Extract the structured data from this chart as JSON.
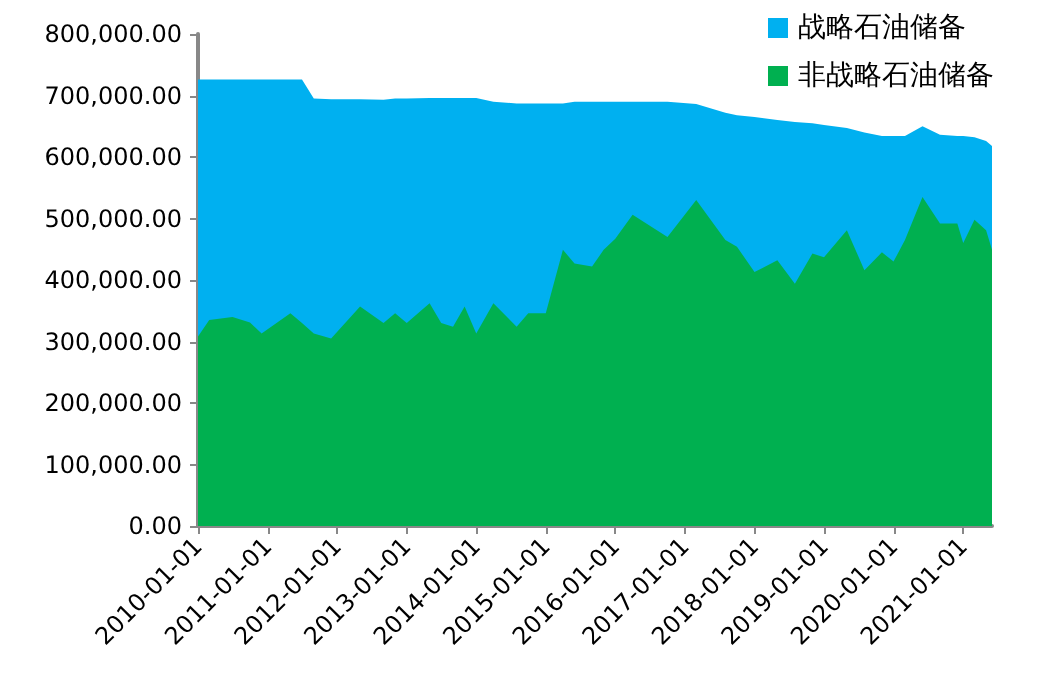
{
  "chart_data": {
    "type": "area",
    "stacked": true,
    "x": [
      "2010-01",
      "2010-03",
      "2010-07",
      "2010-10",
      "2010-12",
      "2011-05",
      "2011-07",
      "2011-09",
      "2011-12",
      "2012-05",
      "2012-09",
      "2012-11",
      "2013-01",
      "2013-05",
      "2013-07",
      "2013-09",
      "2013-11",
      "2014-01",
      "2014-04",
      "2014-08",
      "2014-10",
      "2015-01",
      "2015-04",
      "2015-06",
      "2015-09",
      "2015-11",
      "2016-01",
      "2016-04",
      "2016-10",
      "2017-03",
      "2017-08",
      "2017-10",
      "2018-01",
      "2018-05",
      "2018-08",
      "2018-11",
      "2019-01",
      "2019-05",
      "2019-08",
      "2019-11",
      "2020-01",
      "2020-03",
      "2020-06",
      "2020-09",
      "2020-12",
      "2021-01",
      "2021-03",
      "2021-05",
      "2021-06"
    ],
    "series": [
      {
        "name": "非战略石油储备",
        "color": "#00b050",
        "values": [
          308000,
          335000,
          340000,
          331000,
          313000,
          346000,
          330000,
          313000,
          305000,
          357000,
          330000,
          346000,
          330000,
          362000,
          330000,
          324000,
          357000,
          313000,
          362000,
          324000,
          346000,
          346000,
          449000,
          427000,
          422000,
          449000,
          467000,
          506000,
          470000,
          530000,
          465000,
          454000,
          413000,
          432000,
          394000,
          443000,
          437000,
          481000,
          416000,
          445000,
          430000,
          465000,
          535000,
          492000,
          492000,
          460000,
          498000,
          481000,
          449000
        ]
      },
      {
        "name": "战略石油储备",
        "color": "#00b0f0",
        "values": [
          418000,
          391000,
          386000,
          395000,
          413000,
          380000,
          396000,
          382000,
          389000,
          337000,
          363000,
          349000,
          365000,
          334000,
          366000,
          372000,
          339000,
          383000,
          328000,
          363000,
          341000,
          341000,
          238000,
          263000,
          268000,
          241000,
          223000,
          184000,
          220000,
          156000,
          207000,
          214000,
          252000,
          228000,
          263000,
          212000,
          215000,
          166000,
          224000,
          189000,
          204000,
          169000,
          115000,
          144000,
          142000,
          174000,
          134000,
          145000,
          169000
        ]
      }
    ],
    "xlim": [
      "2010-01",
      "2021-06"
    ],
    "xticks": [
      "2010-01-01",
      "2011-01-01",
      "2012-01-01",
      "2013-01-01",
      "2014-01-01",
      "2015-01-01",
      "2016-01-01",
      "2017-01-01",
      "2018-01-01",
      "2019-01-01",
      "2020-01-01",
      "2021-01-01"
    ],
    "ylim": [
      0,
      800000
    ],
    "yticks": [
      {
        "value": 0,
        "label": "0.00"
      },
      {
        "value": 100000,
        "label": "100,000.00"
      },
      {
        "value": 200000,
        "label": "200,000.00"
      },
      {
        "value": 300000,
        "label": "300,000.00"
      },
      {
        "value": 400000,
        "label": "400,000.00"
      },
      {
        "value": 500000,
        "label": "500,000.00"
      },
      {
        "value": 600000,
        "label": "600,000.00"
      },
      {
        "value": 700000,
        "label": "700,000.00"
      },
      {
        "value": 800000,
        "label": "800,000.00"
      }
    ],
    "grid": false,
    "legend": "top right"
  }
}
